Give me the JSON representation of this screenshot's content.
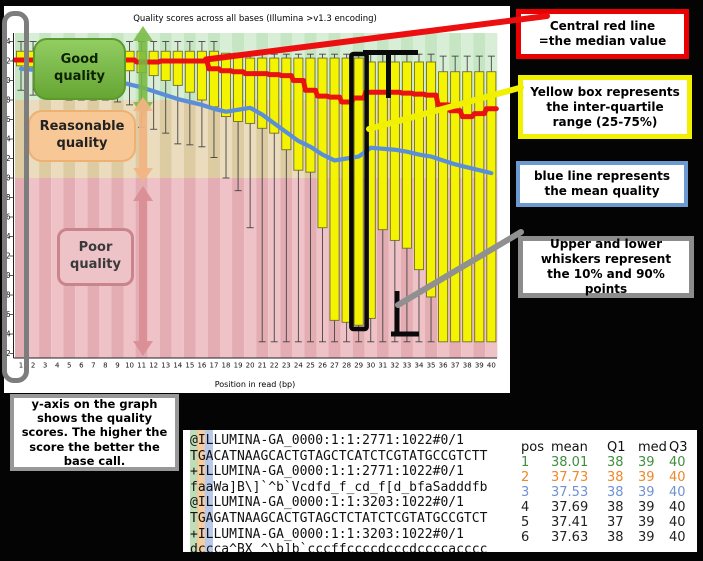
{
  "chart": {
    "title": "Quality scores across all bases (Illumina >v1.3 encoding)",
    "xlabel": "Position in read (bp)"
  },
  "quality_labels": {
    "good": "Good quality",
    "reasonable": "Reasonable quality",
    "poor": "Poor quality"
  },
  "callouts": {
    "median": "Central red line\n=the median value",
    "iqr": "Yellow box represents the inter-quartile range (25-75%)",
    "mean": "blue line represents the mean quality",
    "whiskers": "Upper and lower whiskers represent the 10% and 90% points",
    "yaxis_note": "y-axis on the graph shows the quality scores. The higher the score the better the base call."
  },
  "fastq": {
    "lines": [
      "@ILLUMINA-GA_0000:1:1:2771:1022#0/1",
      "TGACATNAAGCACTGTAGCTCATCTCGTATGCCGTCTT",
      "+ILLUMINA-GA_0000:1:1:2771:1022#0/1",
      "faaWa]B\\]`^b`Vcdfd_f_cd_f[d_bfaSadddfb",
      "@ILLUMINA-GA_0000:1:1:3203:1022#0/1",
      "TGAGATNAAGCACTGTAGCTCTATCTCGTATGCCGTCT",
      "+ILLUMINA-GA_0000:1:1:3203:1022#0/1",
      "dccca^BX_^\\b]b`cccffccccdcccdccccacccc"
    ]
  },
  "table": {
    "headers": [
      "pos",
      "mean",
      "Q1",
      "med",
      "Q3"
    ],
    "rows": [
      {
        "values": [
          "1",
          "38.01",
          "38",
          "39",
          "40"
        ],
        "color": "green"
      },
      {
        "values": [
          "2",
          "37.73",
          "38",
          "39",
          "40"
        ],
        "color": "orange"
      },
      {
        "values": [
          "3",
          "37.53",
          "38",
          "39",
          "40"
        ],
        "color": "blue"
      },
      {
        "values": [
          "4",
          "37.69",
          "38",
          "39",
          "40"
        ],
        "color": "black"
      },
      {
        "values": [
          "5",
          "37.41",
          "37",
          "39",
          "40"
        ],
        "color": "black"
      },
      {
        "values": [
          "6",
          "37.63",
          "38",
          "39",
          "40"
        ],
        "color": "black"
      }
    ]
  },
  "colors": {
    "accent_red": "#e90000",
    "accent_yellow": "#f0f000",
    "accent_blue": "#6b9ad0",
    "accent_gray": "#8c8c8c",
    "row_green": "#3f8f3f",
    "row_orange": "#ee8828",
    "row_blue": "#7191d1",
    "row_black": "#222222",
    "box_fill": "#f4f402",
    "median_line": "#e81212",
    "mean_line": "#5b8ed8"
  },
  "chart_data": {
    "type": "boxplot",
    "title": "Quality scores across all bases (Illumina >v1.3 encoding)",
    "xlabel": "Position in read (bp)",
    "ylabel": "",
    "ylim": [
      0,
      36
    ],
    "ytick_step": 2,
    "zones": [
      {
        "name": "good",
        "q_range": [
          28,
          36
        ]
      },
      {
        "name": "reasonable",
        "q_range": [
          20,
          28
        ]
      },
      {
        "name": "poor",
        "q_range": [
          0,
          20
        ]
      }
    ],
    "x": [
      1,
      2,
      3,
      4,
      5,
      6,
      7,
      8,
      9,
      10,
      11,
      12,
      13,
      14,
      15,
      16,
      17,
      18,
      19,
      20,
      21,
      22,
      23,
      24,
      25,
      26,
      27,
      28,
      29,
      30,
      31,
      32,
      33,
      34,
      35,
      36,
      37,
      38,
      39,
      40
    ],
    "q3": [
      33,
      33,
      33,
      33,
      33,
      33,
      33,
      33,
      33,
      33,
      33,
      33,
      33,
      33,
      33,
      33,
      33,
      32.8,
      32.8,
      32.3,
      32.3,
      32.3,
      32.3,
      32.3,
      32.3,
      32.3,
      32.3,
      32.3,
      32.3,
      31.9,
      31.9,
      31.9,
      31.9,
      31.9,
      31.9,
      30.9,
      30.9,
      30.9,
      30.9,
      30.9
    ],
    "median": [
      32.1,
      32.1,
      32.1,
      32.1,
      32.1,
      32.1,
      32.1,
      32.1,
      32.1,
      32.1,
      31.9,
      31.9,
      32,
      32,
      32,
      32,
      31.2,
      31,
      30.9,
      30.7,
      30.7,
      30.6,
      30.5,
      30,
      29,
      28.4,
      28.3,
      27.8,
      28.2,
      28.8,
      28.8,
      28.8,
      28.7,
      28.6,
      28.5,
      27.5,
      26.9,
      26.3,
      26.6,
      27.1
    ],
    "q1": [
      31.5,
      31.4,
      31.4,
      31.3,
      31.3,
      31.2,
      31.2,
      31.2,
      31.1,
      31,
      30.8,
      30.5,
      30,
      29.5,
      28.8,
      28,
      27.3,
      26.3,
      25.8,
      25.6,
      25.1,
      24.6,
      22.9,
      20.8,
      20.6,
      14.9,
      5.4,
      5.2,
      4.9,
      5.6,
      14.7,
      13.6,
      12.8,
      10.6,
      7.8,
      3.2,
      3.2,
      3.2,
      3.2,
      3.2
    ],
    "whisker_high": [
      34,
      34,
      34,
      34,
      34,
      34,
      34,
      34,
      34,
      34,
      34,
      34,
      34,
      34,
      34,
      34,
      34,
      32.7,
      32.7,
      32.7,
      32.7,
      32.7,
      32.7,
      32.7,
      32.7,
      32.7,
      32.7,
      32.7,
      32.7,
      32.7,
      32.7,
      32.7,
      32.7,
      32.7,
      32.7,
      32.5,
      32.5,
      32.5,
      32.5,
      32.5
    ],
    "whisker_low": [
      29,
      28.5,
      28.3,
      28.2,
      28,
      28,
      28,
      28,
      27.8,
      27.5,
      25.2,
      25,
      24.6,
      23.5,
      23.4,
      23.2,
      22.1,
      20,
      18.7,
      14.9,
      3.2,
      3.2,
      3.2,
      3.2,
      3.2,
      3.2,
      3.2,
      3.2,
      3.2,
      3.2,
      3.2,
      3.2,
      3.2,
      3.2,
      3.2,
      3.2,
      3.2,
      3.2,
      3.2,
      3.2
    ],
    "mean": [
      31.2,
      31.1,
      31,
      30.9,
      30.7,
      30.5,
      30.3,
      30.1,
      29.9,
      29.6,
      29.3,
      28.9,
      28.5,
      28.1,
      27.8,
      27.5,
      27.1,
      26.8,
      27,
      27.2,
      26.5,
      25.6,
      24.7,
      23.8,
      23.2,
      22.4,
      21.8,
      22,
      22.2,
      23.1,
      23,
      22.9,
      22.7,
      22.4,
      22.2,
      21.8,
      21.4,
      21.1,
      20.8,
      20.5
    ],
    "highlighted_position": 29
  }
}
